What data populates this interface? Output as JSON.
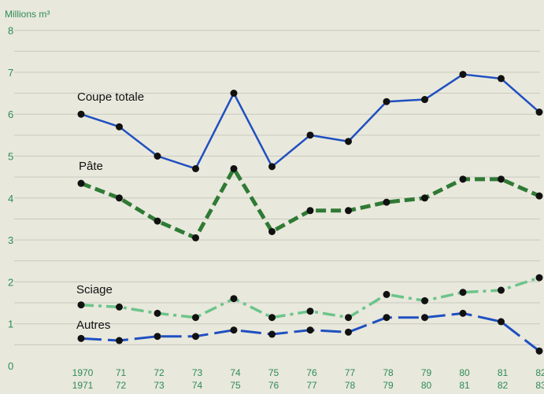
{
  "chart_data": {
    "type": "line",
    "unit_label": "Millions m³",
    "categories": [
      [
        "1970",
        "1971"
      ],
      [
        "71",
        "72"
      ],
      [
        "72",
        "73"
      ],
      [
        "73",
        "74"
      ],
      [
        "74",
        "75"
      ],
      [
        "75",
        "76"
      ],
      [
        "76",
        "77"
      ],
      [
        "77",
        "78"
      ],
      [
        "78",
        "79"
      ],
      [
        "79",
        "80"
      ],
      [
        "80",
        "81"
      ],
      [
        "81",
        "82"
      ],
      [
        "82",
        "83"
      ]
    ],
    "y_ticks": [
      "0",
      "1",
      "2",
      "3",
      "4",
      "5",
      "6",
      "7",
      "8"
    ],
    "ylim": [
      0,
      8
    ],
    "grid": true,
    "series": [
      {
        "name": "Coupe totale",
        "color": "#1f4fc1",
        "style": "solid",
        "values": [
          6.0,
          5.7,
          5.0,
          4.7,
          6.5,
          4.75,
          5.5,
          5.35,
          6.3,
          6.35,
          6.95,
          6.85,
          6.05
        ]
      },
      {
        "name": "Pâte",
        "color": "#2f7a35",
        "style": "dash",
        "values": [
          4.35,
          4.0,
          3.45,
          3.05,
          4.7,
          3.2,
          3.7,
          3.7,
          3.9,
          4.0,
          4.45,
          4.45,
          4.05
        ]
      },
      {
        "name": "Sciage",
        "color": "#6cc48a",
        "style": "dashdot",
        "values": [
          1.45,
          1.4,
          1.25,
          1.15,
          1.6,
          1.15,
          1.3,
          1.15,
          1.7,
          1.55,
          1.75,
          1.8,
          2.1
        ]
      },
      {
        "name": "Autres",
        "color": "#1f4fc1",
        "style": "longdash",
        "values": [
          0.65,
          0.6,
          0.7,
          0.7,
          0.85,
          0.75,
          0.85,
          0.8,
          1.15,
          1.15,
          1.25,
          1.05,
          0.35
        ]
      }
    ]
  }
}
